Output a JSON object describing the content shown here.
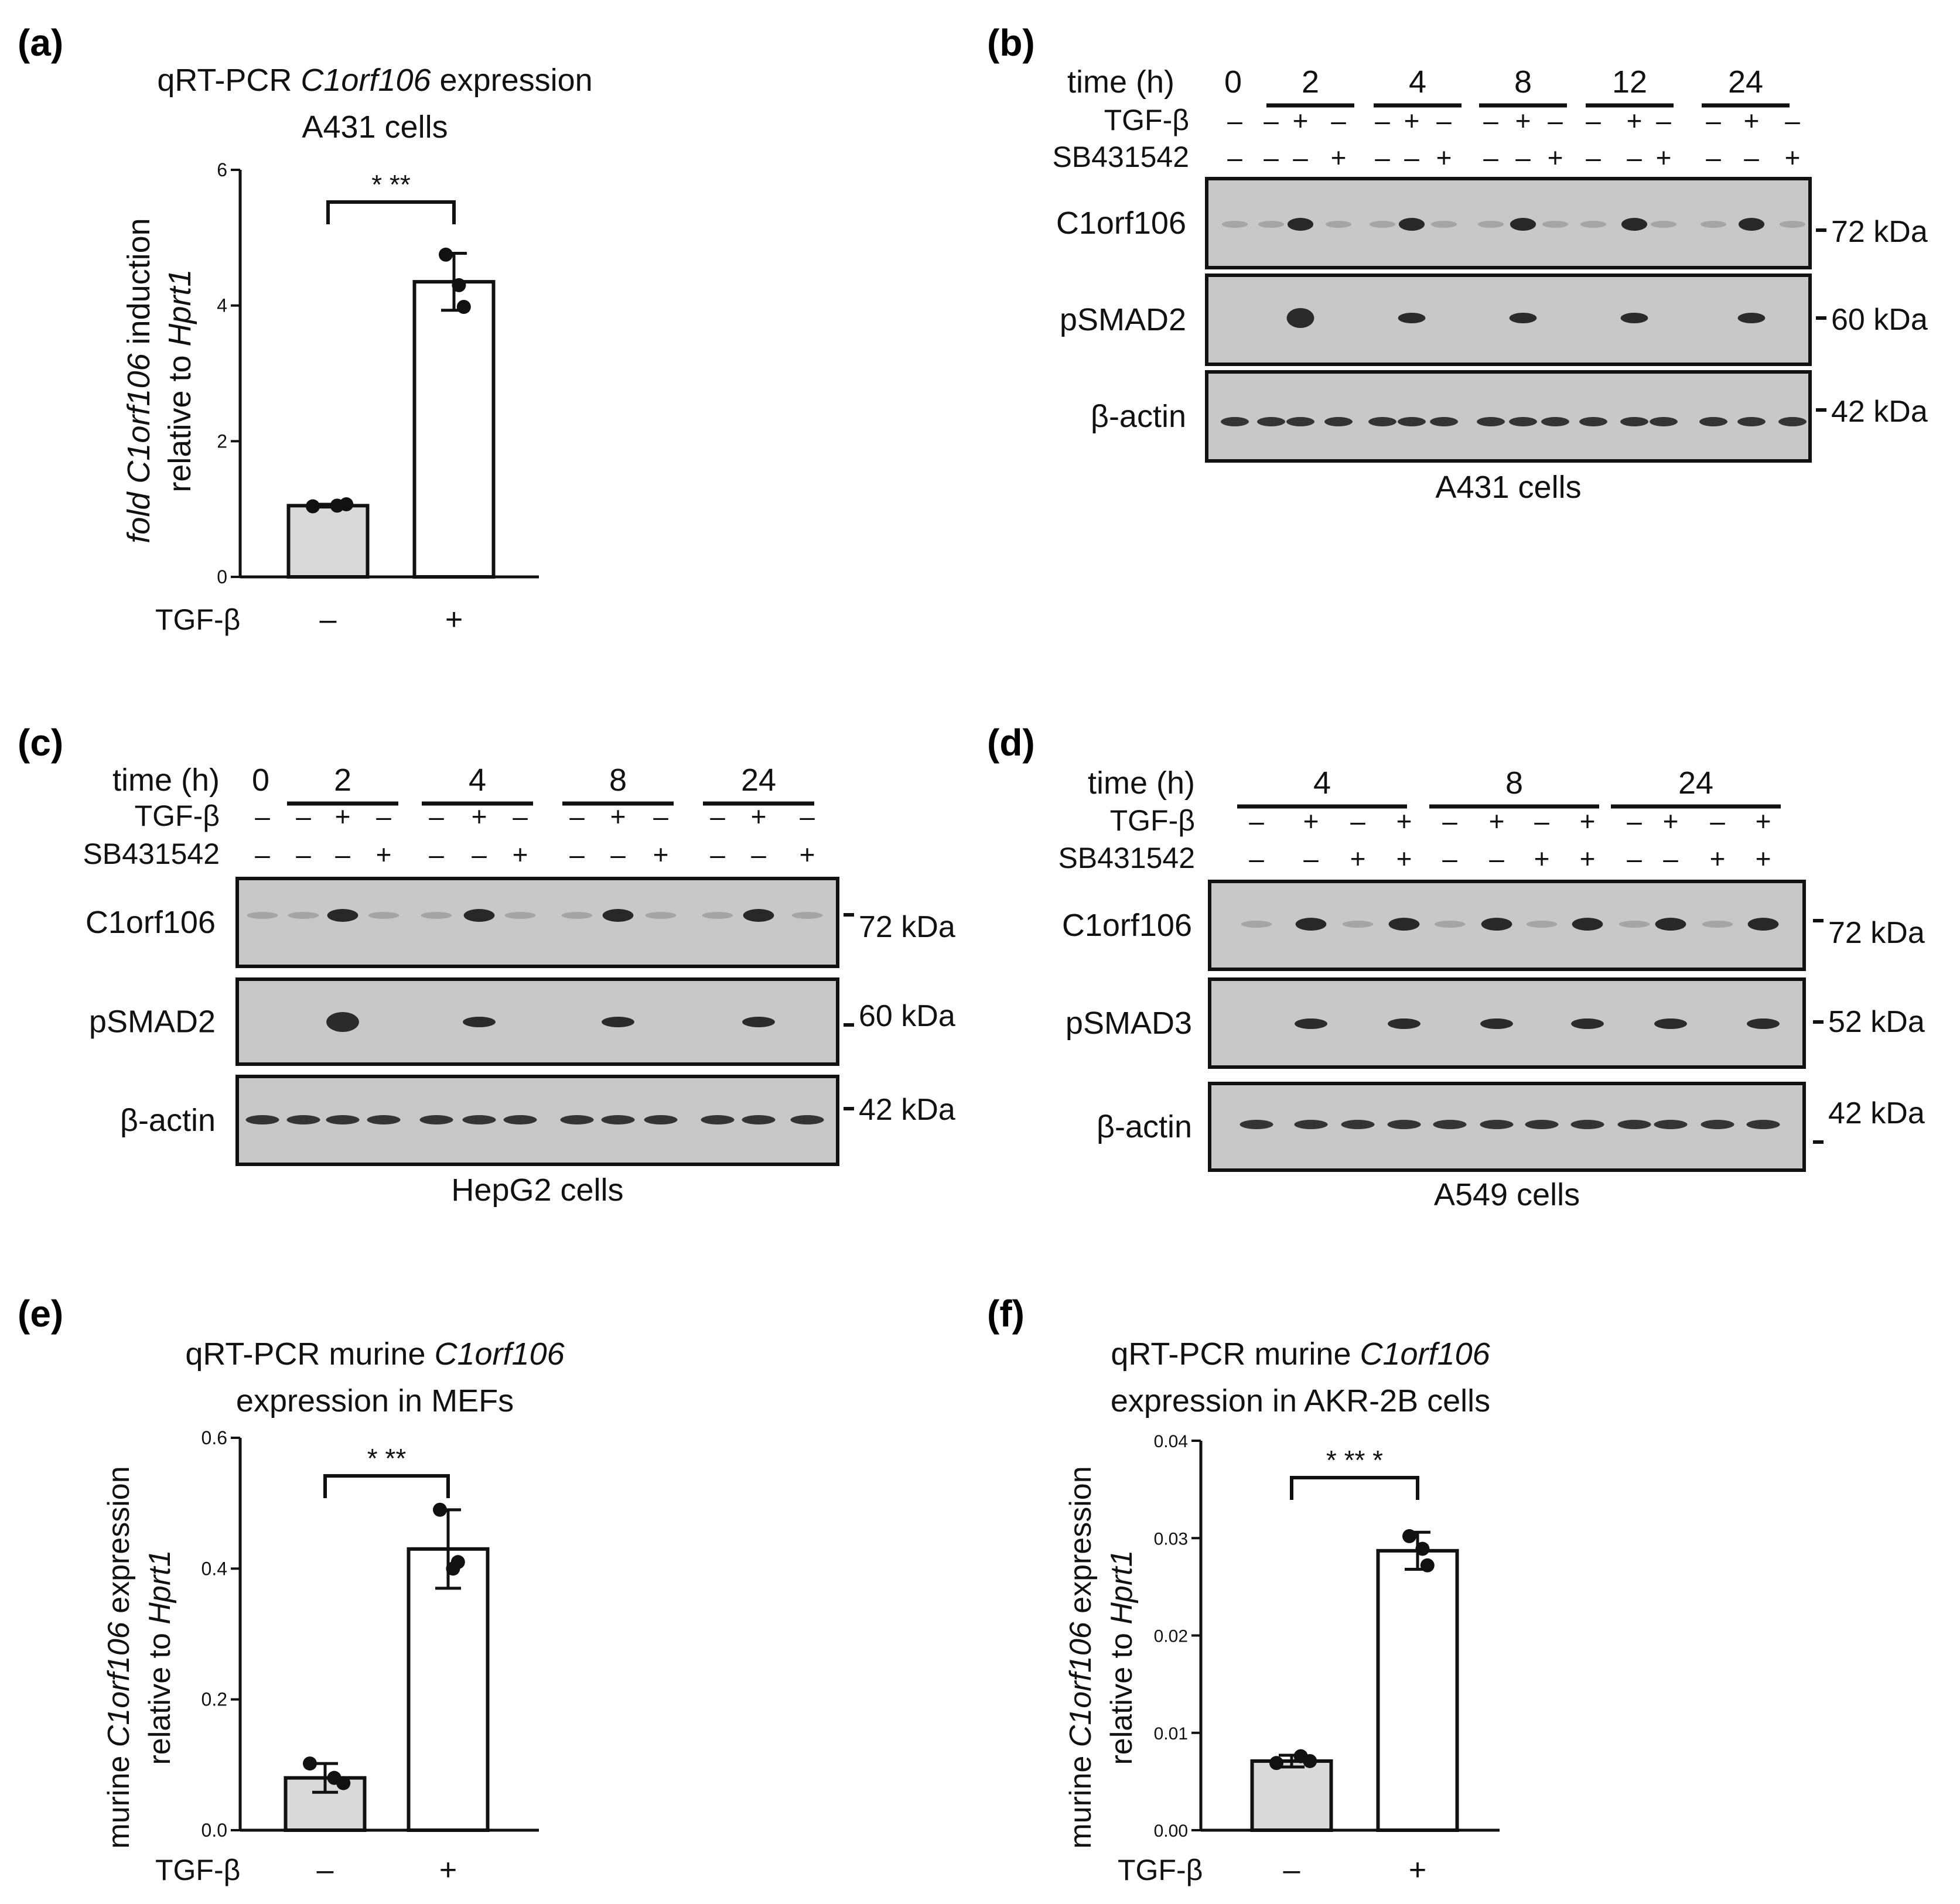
{
  "colors": {
    "bar_control": "#d9d9d9",
    "bar_treated": "#ffffff",
    "blot_bg": "#c8c8c8",
    "band": "#1a1a1a",
    "ink": "#111111"
  },
  "panel_a": {
    "letter": "(a)",
    "title_prefix": "qRT-PCR ",
    "title_gene": "C1orf106",
    "title_suffix": " expression",
    "title_line2": "A431 cells",
    "ylabel_gene_pre": "fold ",
    "ylabel_gene": "C1orf106",
    "ylabel_gene_post": " induction",
    "ylabel_line2_pre": "relative to ",
    "ylabel_line2_gene": "Hprt1",
    "treatment_label": "TGF-β",
    "categories": [
      "–",
      "+"
    ],
    "significance": "* **"
  },
  "panel_b": {
    "letter": "(b)",
    "time_label": "time (h)",
    "time_points": [
      "0",
      "2",
      "4",
      "8",
      "12",
      "24"
    ],
    "tgf_label": "TGF-β",
    "tgf_signs": [
      "–",
      "–",
      "+",
      "–",
      "–",
      "+",
      "–",
      "–",
      "+",
      "–",
      "–",
      "+",
      "–",
      "–",
      "+",
      "–"
    ],
    "sb_label": "SB431542",
    "sb_signs": [
      "–",
      "–",
      "–",
      "+",
      "–",
      "–",
      "+",
      "–",
      "–",
      "+",
      "–",
      "–",
      "+",
      "–",
      "–",
      "+"
    ],
    "rows": [
      {
        "protein": "C1orf106",
        "kda": "72 kDa"
      },
      {
        "protein": "pSMAD2",
        "kda": "60 kDa"
      },
      {
        "protein": "β-actin",
        "kda": "42 kDa"
      }
    ],
    "cell_line": "A431 cells"
  },
  "panel_c": {
    "letter": "(c)",
    "time_label": "time (h)",
    "time_points": [
      "0",
      "2",
      "4",
      "8",
      "24"
    ],
    "tgf_label": "TGF-β",
    "tgf_signs": [
      "–",
      "–",
      "+",
      "–",
      "–",
      "+",
      "–",
      "–",
      "+",
      "–",
      "–",
      "+",
      "–"
    ],
    "sb_label": "SB431542",
    "sb_signs": [
      "–",
      "–",
      "–",
      "+",
      "–",
      "–",
      "+",
      "–",
      "–",
      "+",
      "–",
      "–",
      "+"
    ],
    "rows": [
      {
        "protein": "C1orf106",
        "kda": "72 kDa"
      },
      {
        "protein": "pSMAD2",
        "kda": "60 kDa"
      },
      {
        "protein": "β-actin",
        "kda": "42 kDa"
      }
    ],
    "cell_line": "HepG2 cells"
  },
  "panel_d": {
    "letter": "(d)",
    "time_label": "time (h)",
    "time_points": [
      "4",
      "8",
      "24"
    ],
    "tgf_label": "TGF-β",
    "tgf_signs": [
      "–",
      "+",
      "–",
      "+",
      "–",
      "+",
      "–",
      "+",
      "–",
      "+",
      "–",
      "+"
    ],
    "sb_label": "SB431542",
    "sb_signs": [
      "–",
      "–",
      "+",
      "+",
      "–",
      "–",
      "+",
      "+",
      "–",
      "–",
      "+",
      "+"
    ],
    "rows": [
      {
        "protein": "C1orf106",
        "kda": "72 kDa"
      },
      {
        "protein": "pSMAD3",
        "kda": "52 kDa"
      },
      {
        "protein": "β-actin",
        "kda": "42 kDa"
      }
    ],
    "cell_line": "A549 cells"
  },
  "panel_e": {
    "letter": "(e)",
    "title_prefix": "qRT-PCR murine ",
    "title_gene": "C1orf106",
    "title_line2": "expression in MEFs",
    "ylabel_pre": "murine ",
    "ylabel_gene": "C1orf106",
    "ylabel_post": " expression",
    "ylabel_line2_pre": "relative to ",
    "ylabel_line2_gene": "Hprt1",
    "treatment_label": "TGF-β",
    "categories": [
      "–",
      "+"
    ],
    "significance": "* **"
  },
  "panel_f": {
    "letter": "(f)",
    "title_prefix": "qRT-PCR murine ",
    "title_gene": "C1orf106",
    "title_line2": "expression in AKR-2B cells",
    "ylabel_pre": "murine ",
    "ylabel_gene": "C1orf106",
    "ylabel_post": " expression",
    "ylabel_line2_pre": "relative to ",
    "ylabel_line2_gene": "Hprt1",
    "treatment_label": "TGF-β",
    "categories": [
      "–",
      "+"
    ],
    "significance": "* ** *"
  },
  "chart_data": [
    {
      "panel": "a",
      "type": "bar",
      "title": "qRT-PCR C1orf106 expression A431 cells",
      "ylabel": "fold C1orf106 induction relative to Hprt1",
      "xlabel": "TGF-β",
      "categories": [
        "–",
        "+"
      ],
      "values": [
        1.05,
        4.35
      ],
      "errors": [
        0.02,
        0.42
      ],
      "points": [
        [
          1.04,
          1.05,
          1.07
        ],
        [
          4.75,
          4.3,
          3.98
        ]
      ],
      "ylim": [
        0,
        6
      ],
      "yticks": [
        0,
        2,
        4,
        6
      ],
      "ytick_labels": [
        "0",
        "2",
        "4",
        "6"
      ]
    },
    {
      "panel": "e",
      "type": "bar",
      "title": "qRT-PCR murine C1orf106 expression in MEFs",
      "ylabel": "murine C1orf106 expression relative to Hprt1",
      "xlabel": "TGF-β",
      "categories": [
        "–",
        "+"
      ],
      "values": [
        0.08,
        0.43
      ],
      "errors": [
        0.022,
        0.06
      ],
      "points": [
        [
          0.102,
          0.08,
          0.072
        ],
        [
          0.49,
          0.4,
          0.41
        ]
      ],
      "ylim": [
        0,
        0.6
      ],
      "yticks": [
        0,
        0.2,
        0.4,
        0.6
      ],
      "ytick_labels": [
        "0.0",
        "0.2",
        "0.4",
        "0.6"
      ]
    },
    {
      "panel": "f",
      "type": "bar",
      "title": "qRT-PCR murine C1orf106 expression in AKR-2B cells",
      "ylabel": "murine C1orf106 expression relative to Hprt1",
      "xlabel": "TGF-β",
      "categories": [
        "–",
        "+"
      ],
      "values": [
        0.0071,
        0.0287
      ],
      "errors": [
        0.0006,
        0.0019
      ],
      "points": [
        [
          0.0069,
          0.0076,
          0.0071
        ],
        [
          0.0302,
          0.0289,
          0.0272
        ]
      ],
      "ylim": [
        0,
        0.04
      ],
      "yticks": [
        0,
        0.01,
        0.02,
        0.03,
        0.04
      ],
      "ytick_labels": [
        "0.00",
        "0.01",
        "0.02",
        "0.03",
        "0.04"
      ]
    }
  ]
}
